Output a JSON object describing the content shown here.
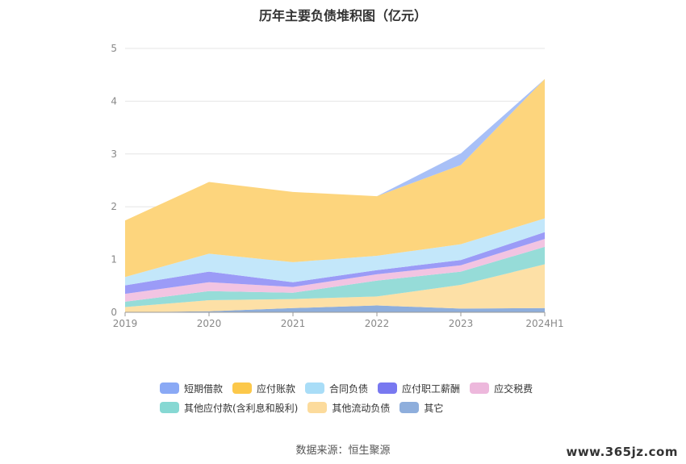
{
  "title": "历年主要负债堆积图（亿元）",
  "source": "数据来源：恒生聚源",
  "watermark": "www.365jz.com",
  "chart_data": {
    "type": "area",
    "stacked": true,
    "title": "历年主要负债堆积图（亿元）",
    "x": [
      "2019",
      "2020",
      "2021",
      "2022",
      "2023",
      "2024H1"
    ],
    "ylim": [
      0,
      5
    ],
    "yticks": [
      0,
      1,
      2,
      3,
      4,
      5
    ],
    "grid": true,
    "legend_position": "bottom",
    "series": [
      {
        "name": "其它",
        "color": "#8eaedc",
        "values": [
          0.0,
          0.02,
          0.08,
          0.13,
          0.07,
          0.08
        ]
      },
      {
        "name": "其他流动负债",
        "color": "#fde0a6",
        "values": [
          0.1,
          0.21,
          0.17,
          0.17,
          0.45,
          0.83
        ]
      },
      {
        "name": "其他应付款(含利息和股利)",
        "color": "#96dcd8",
        "values": [
          0.1,
          0.17,
          0.12,
          0.3,
          0.25,
          0.33
        ]
      },
      {
        "name": "应交税费",
        "color": "#f2c4e2",
        "values": [
          0.15,
          0.17,
          0.11,
          0.12,
          0.12,
          0.15
        ]
      },
      {
        "name": "应付职工薪酬",
        "color": "#9b9bf7",
        "values": [
          0.16,
          0.2,
          0.09,
          0.08,
          0.1,
          0.13
        ]
      },
      {
        "name": "合同负债",
        "color": "#c3e7fa",
        "values": [
          0.16,
          0.34,
          0.38,
          0.27,
          0.3,
          0.26
        ]
      },
      {
        "name": "应付账款",
        "color": "#fdd57d",
        "values": [
          1.07,
          1.36,
          1.33,
          1.13,
          1.5,
          2.64
        ]
      },
      {
        "name": "短期借款",
        "color": "#a8c0f7",
        "values": [
          0.0,
          0.0,
          0.0,
          0.0,
          0.22,
          0.0
        ]
      }
    ]
  },
  "legend": [
    {
      "label": "短期借款",
      "color": "#8aa9f5"
    },
    {
      "label": "应付账款",
      "color": "#fcc84a"
    },
    {
      "label": "合同负债",
      "color": "#a9ddf7"
    },
    {
      "label": "应付职工薪酬",
      "color": "#7878f0"
    },
    {
      "label": "应交税费",
      "color": "#edb8dc"
    },
    {
      "label": "其他应付款(含利息和股利)",
      "color": "#86d8d3"
    },
    {
      "label": "其他流动负债",
      "color": "#fcdb9c"
    },
    {
      "label": "其它",
      "color": "#8eaedc"
    }
  ]
}
